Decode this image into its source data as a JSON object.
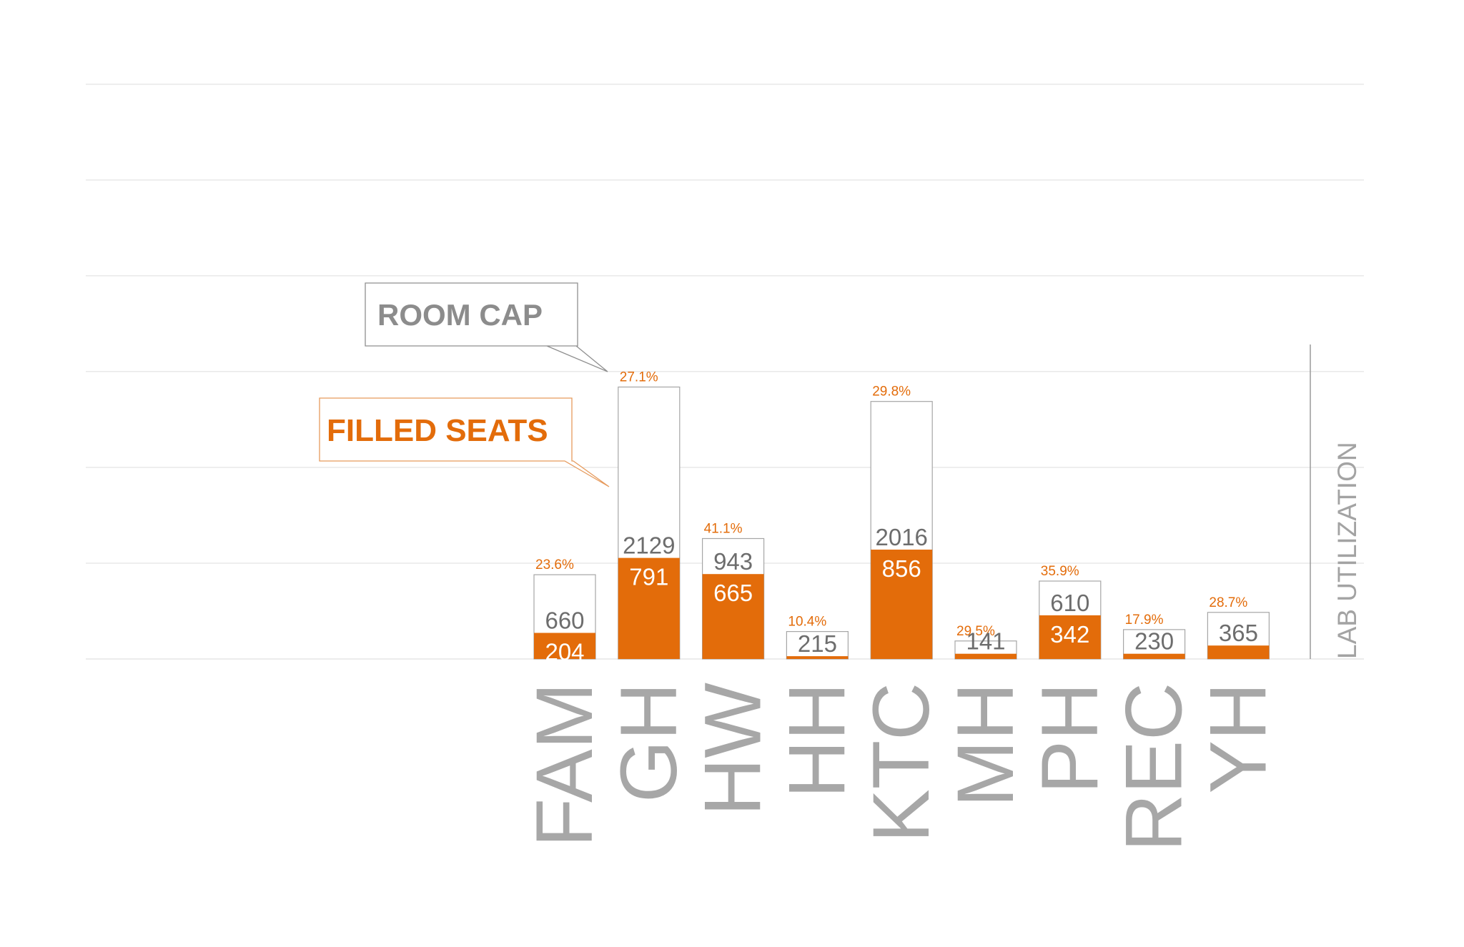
{
  "colors": {
    "filled": "#e36c0a",
    "capacity_outline": "#a6a6a6",
    "gridline": "#e4e4e4",
    "category_text": "#a7a7a7"
  },
  "legend": {
    "room_cap": "ROOM CAP",
    "filled_seats": "FILLED SEATS"
  },
  "side_title": "LAB UTILIZATION",
  "chart_data": {
    "type": "bar",
    "title": "",
    "xlabel": "",
    "ylabel": "",
    "ylim": [
      0,
      4500
    ],
    "grid": true,
    "categories": [
      "FAM",
      "GH",
      "HW",
      "HH",
      "KTC",
      "MH",
      "PH",
      "REC",
      "YH"
    ],
    "series": [
      {
        "name": "ROOM CAP",
        "values": [
          660,
          2129,
          943,
          215,
          2016,
          141,
          610,
          230,
          365
        ]
      },
      {
        "name": "FILLED SEATS",
        "values": [
          204,
          791,
          665,
          22,
          856,
          41,
          342,
          41,
          105
        ]
      }
    ],
    "percent_labels": [
      "23.6%",
      "27.1%",
      "41.1%",
      "10.4%",
      "29.8%",
      "29.5%",
      "35.9%",
      "17.9%",
      "28.7%"
    ],
    "capacity_labels": [
      "660",
      "2129",
      "943",
      "215",
      "2016",
      "141",
      "610",
      "230",
      "365"
    ],
    "filled_labels": [
      "204",
      "791",
      "665",
      "",
      "856",
      "",
      "342",
      "",
      ""
    ]
  }
}
